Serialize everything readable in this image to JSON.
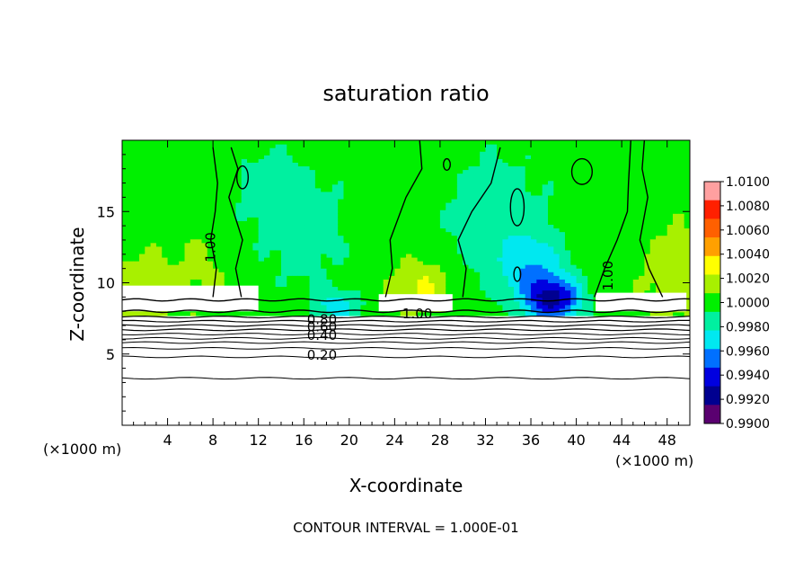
{
  "chart_data": {
    "type": "heatmap",
    "title": "saturation ratio",
    "xlabel": "X-coordinate",
    "ylabel": "Z-coordinate",
    "x_unit_label_left": "(×1000 m)",
    "x_unit_label_right": "(×1000 m)",
    "xlim": [
      0,
      50
    ],
    "ylim": [
      0,
      20
    ],
    "xticks": [
      4,
      8,
      12,
      16,
      20,
      24,
      28,
      32,
      36,
      40,
      44,
      48
    ],
    "yticks": [
      5,
      10,
      15
    ],
    "footer": "CONTOUR INTERVAL = 1.000E-01",
    "colorbar": {
      "min": 0.99,
      "max": 1.01,
      "labels": [
        "1.0100",
        "1.0080",
        "1.0060",
        "1.0040",
        "1.0020",
        "1.0000",
        "0.9980",
        "0.9960",
        "0.9940",
        "0.9920",
        "0.9900"
      ],
      "colors": [
        "#ffa0a0",
        "#ff2000",
        "#ff6000",
        "#ffa000",
        "#ffff00",
        "#a8f000",
        "#00f000",
        "#00f0a0",
        "#00e8f0",
        "#0070ff",
        "#0000e0",
        "#000090",
        "#5a0070"
      ]
    },
    "contour_labels": [
      {
        "text": "1.00",
        "x": 8.2,
        "y": 12.5,
        "rotate": -90
      },
      {
        "text": "1.00",
        "x": 43.2,
        "y": 10.5,
        "rotate": -90
      },
      {
        "text": "1.00",
        "x": 26.0,
        "y": 7.5,
        "rotate": 0
      },
      {
        "text": "0.80",
        "x": 17.6,
        "y": 7.1,
        "rotate": 0
      },
      {
        "text": "0.60",
        "x": 17.6,
        "y": 6.6,
        "rotate": 0
      },
      {
        "text": "0.40",
        "x": 17.6,
        "y": 6.0,
        "rotate": 0
      },
      {
        "text": "0.20",
        "x": 17.6,
        "y": 4.6,
        "rotate": 0
      }
    ],
    "cloud_base_levels": [
      8.8,
      8.0
    ],
    "contour_levels_below_cloud": [
      7.6,
      7.3,
      7.0,
      6.7,
      6.4,
      6.1,
      5.8,
      5.4,
      4.8,
      3.3
    ]
  }
}
